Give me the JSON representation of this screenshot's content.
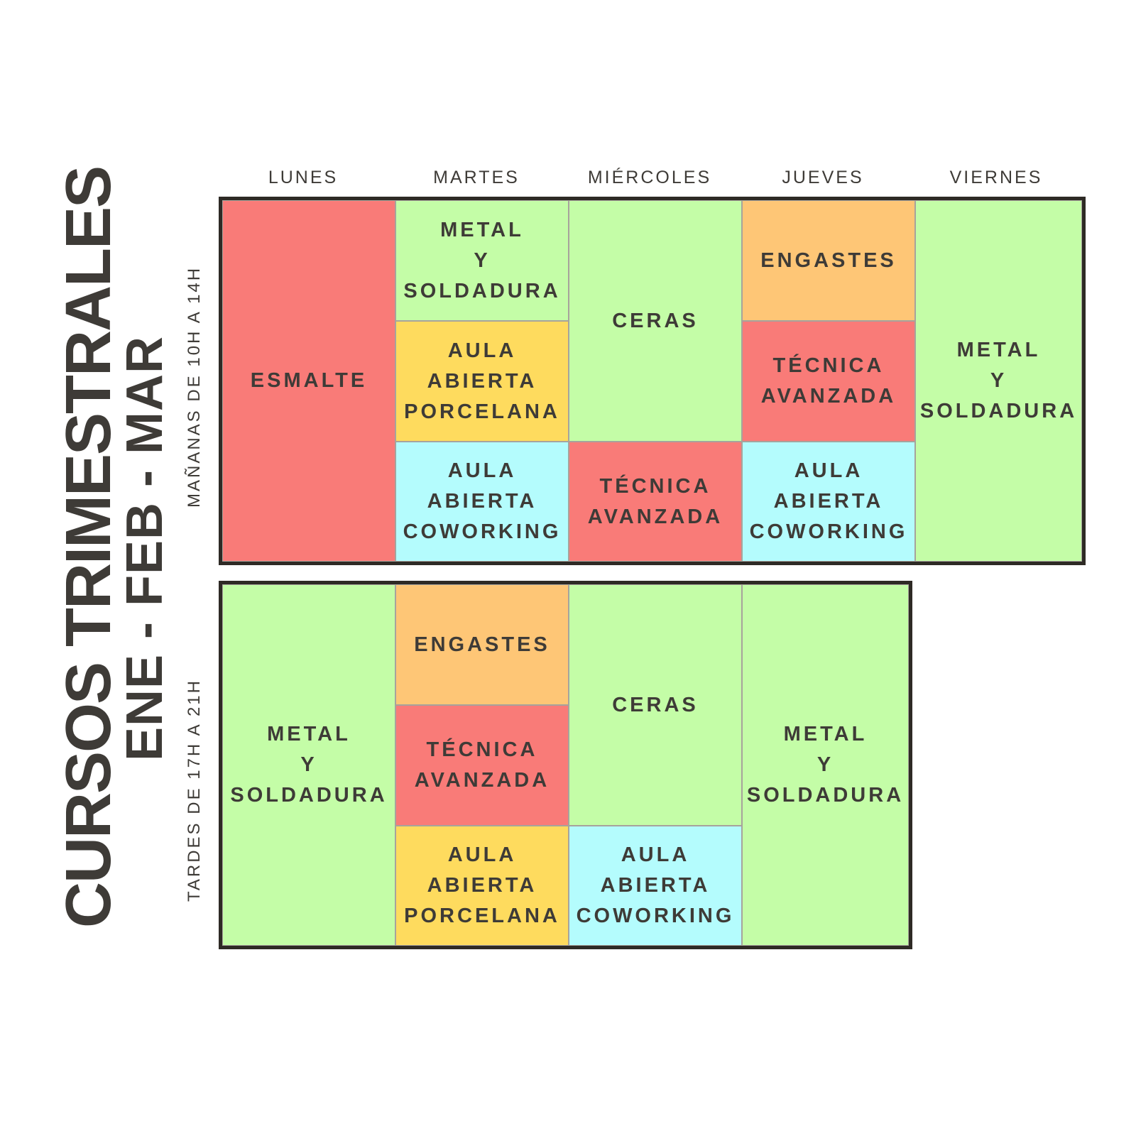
{
  "title": "CURSOS TRIMESTRALES",
  "subtitle": "ENE - FEB - MAR",
  "colors": {
    "red": "#f97b78",
    "green": "#c4fda7",
    "orange": "#fec676",
    "yellow": "#fedb5e",
    "cyan": "#b4fcfd",
    "border": "#2e2a25",
    "text": "#3e3b37"
  },
  "days": [
    "LUNES",
    "MARTES",
    "MIÉRCOLES",
    "JUEVES",
    "VIERNES"
  ],
  "morning": {
    "label": "MAÑANAS DE 10H A 14H",
    "cells": [
      {
        "day": "LUNES",
        "text": "ESMALTE",
        "color": "red"
      },
      {
        "day": "MARTES",
        "text": "METAL\nY\nSOLDADURA",
        "color": "green"
      },
      {
        "day": "MARTES",
        "text": "AULA\nABIERTA\nPORCELANA",
        "color": "yellow"
      },
      {
        "day": "MARTES",
        "text": "AULA\nABIERTA\nCOWORKING",
        "color": "cyan"
      },
      {
        "day": "MIÉRCOLES",
        "text": "CERAS",
        "color": "green"
      },
      {
        "day": "MIÉRCOLES",
        "text": "TÉCNICA\nAVANZADA",
        "color": "red"
      },
      {
        "day": "JUEVES",
        "text": "ENGASTES",
        "color": "orange"
      },
      {
        "day": "JUEVES",
        "text": "TÉCNICA\nAVANZADA",
        "color": "red"
      },
      {
        "day": "JUEVES",
        "text": "AULA\nABIERTA\nCOWORKING",
        "color": "cyan"
      },
      {
        "day": "VIERNES",
        "text": "METAL\nY\nSOLDADURA",
        "color": "green"
      }
    ]
  },
  "afternoon": {
    "label": "TARDES DE 17H A 21H",
    "cells": [
      {
        "day": "LUNES",
        "text": "METAL\nY\nSOLDADURA",
        "color": "green"
      },
      {
        "day": "MARTES",
        "text": "ENGASTES",
        "color": "orange"
      },
      {
        "day": "MARTES",
        "text": "TÉCNICA\nAVANZADA",
        "color": "red"
      },
      {
        "day": "MARTES",
        "text": "AULA\nABIERTA\nPORCELANA",
        "color": "yellow"
      },
      {
        "day": "MIÉRCOLES",
        "text": "CERAS",
        "color": "green"
      },
      {
        "day": "MIÉRCOLES",
        "text": "AULA\nABIERTA\nCOWORKING",
        "color": "cyan"
      },
      {
        "day": "JUEVES",
        "text": "METAL\nY\nSOLDADURA",
        "color": "green"
      }
    ]
  }
}
